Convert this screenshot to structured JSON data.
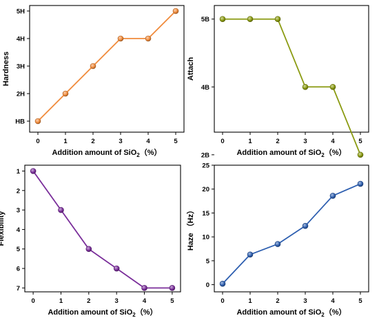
{
  "chart_data": [
    {
      "type": "line",
      "x": [
        0,
        1,
        2,
        3,
        4,
        5
      ],
      "xticks": [
        "0",
        "1",
        "2",
        "3",
        "4",
        "5"
      ],
      "xlim": [
        -0.3,
        5.3
      ],
      "xlabel": {
        "text": "Addition amount of SiO",
        "sub": "2",
        "suffix": "（%）"
      },
      "ylabel": "Hardness",
      "y_kind": "category",
      "yticks": [
        "HB",
        "2H",
        "3H",
        "4H",
        "5H"
      ],
      "ylim": [
        0.6,
        5.2
      ],
      "y_reversed": false,
      "series": [
        {
          "values": [
            1,
            2,
            3,
            4,
            4,
            5
          ],
          "color": "#F08A3A"
        }
      ]
    },
    {
      "type": "line",
      "x": [
        0,
        1,
        2,
        3,
        4,
        5
      ],
      "xticks": [
        "0",
        "1",
        "2",
        "3",
        "4",
        "5"
      ],
      "xlim": [
        -0.3,
        5.3
      ],
      "xlabel": {
        "text": "Addition amount of SiO",
        "sub": "2",
        "suffix": "（%）"
      },
      "ylabel": "Attach",
      "y_kind": "category",
      "yticks": [
        "2B",
        "4B",
        "5B"
      ],
      "ylim": [
        1.5,
        4.3
      ],
      "y_reversed": false,
      "series": [
        {
          "values": [
            4,
            4,
            4,
            2.5,
            2.5,
            1
          ],
          "color": "#8A9A10"
        }
      ]
    },
    {
      "type": "line",
      "x": [
        0,
        1,
        2,
        3,
        4,
        5
      ],
      "xticks": [
        "0",
        "1",
        "2",
        "3",
        "4",
        "5"
      ],
      "xlim": [
        -0.3,
        5.3
      ],
      "xlabel": {
        "text": "Addition amount of SiO",
        "sub": "2",
        "suffix": "（%）"
      },
      "ylabel": "Flexibility",
      "y_kind": "number",
      "yticks": [
        "1",
        "2",
        "3",
        "4",
        "5",
        "6",
        "7"
      ],
      "ylim": [
        0.7,
        7.2
      ],
      "y_reversed": true,
      "series": [
        {
          "values": [
            1,
            3,
            5,
            6,
            7,
            7
          ],
          "color": "#7A2E9A"
        }
      ]
    },
    {
      "type": "line",
      "x": [
        0,
        1,
        2,
        3,
        4,
        5
      ],
      "xticks": [
        "0",
        "1",
        "2",
        "3",
        "4",
        "5"
      ],
      "xlim": [
        -0.3,
        5.3
      ],
      "xlabel": {
        "text": "Addition amount of SiO",
        "sub": "2",
        "suffix": "（%）"
      },
      "ylabel": "Haze （Hz）",
      "y_kind": "number",
      "yticks": [
        "0",
        "5",
        "10",
        "15",
        "20",
        "25"
      ],
      "ylim": [
        -1.5,
        25
      ],
      "y_reversed": false,
      "series": [
        {
          "values": [
            0.2,
            6.3,
            8.5,
            12.3,
            18.6,
            21.1
          ],
          "color": "#2E5FB0"
        }
      ]
    }
  ]
}
